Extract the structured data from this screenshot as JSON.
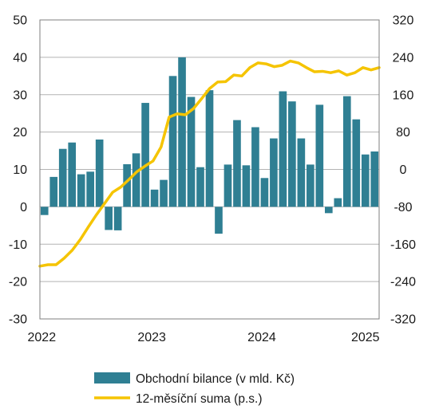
{
  "chart_data": {
    "type": "bar",
    "x_tick_labels": [
      "2022",
      "2023",
      "2024",
      "2025"
    ],
    "y_left": {
      "ylim": [
        -30,
        50
      ],
      "ticks": [
        -30,
        -20,
        -10,
        0,
        10,
        20,
        30,
        40,
        50
      ]
    },
    "y_right": {
      "ylim": [
        -320,
        320
      ],
      "ticks": [
        -320,
        -240,
        -160,
        -80,
        0,
        80,
        160,
        240,
        320
      ]
    },
    "grid": true,
    "legend_position": "bottom",
    "colors": {
      "bar": "#2f7f93",
      "line": "#f5c400"
    },
    "series": [
      {
        "name": "Obchodní bilance (v mld. Kč)",
        "type": "bar",
        "axis": "left",
        "values": [
          -2.2,
          8.0,
          15.5,
          17.2,
          8.7,
          9.4,
          18.0,
          -6.2,
          -6.3,
          11.4,
          14.3,
          27.8,
          4.6,
          7.2,
          35.0,
          40.0,
          29.4,
          10.6,
          31.2,
          -7.2,
          11.3,
          23.2,
          11.1,
          21.3,
          7.7,
          18.3,
          30.9,
          28.2,
          18.3,
          11.3,
          27.3,
          -1.7,
          2.3,
          29.6,
          23.4,
          14.0,
          14.8
        ]
      },
      {
        "name": "12-měsíční suma (p.s.)",
        "type": "line",
        "axis": "right",
        "values": [
          -207,
          -204,
          -204,
          -190,
          -173,
          -150,
          -123,
          -97,
          -73,
          -49,
          -38,
          -22,
          -5,
          7,
          18,
          48,
          112,
          119,
          117,
          130,
          151,
          173,
          187,
          188,
          202,
          200,
          218,
          228,
          226,
          220,
          223,
          232,
          228,
          218,
          209,
          210,
          207,
          211,
          202,
          207,
          218,
          213,
          218
        ]
      }
    ]
  }
}
